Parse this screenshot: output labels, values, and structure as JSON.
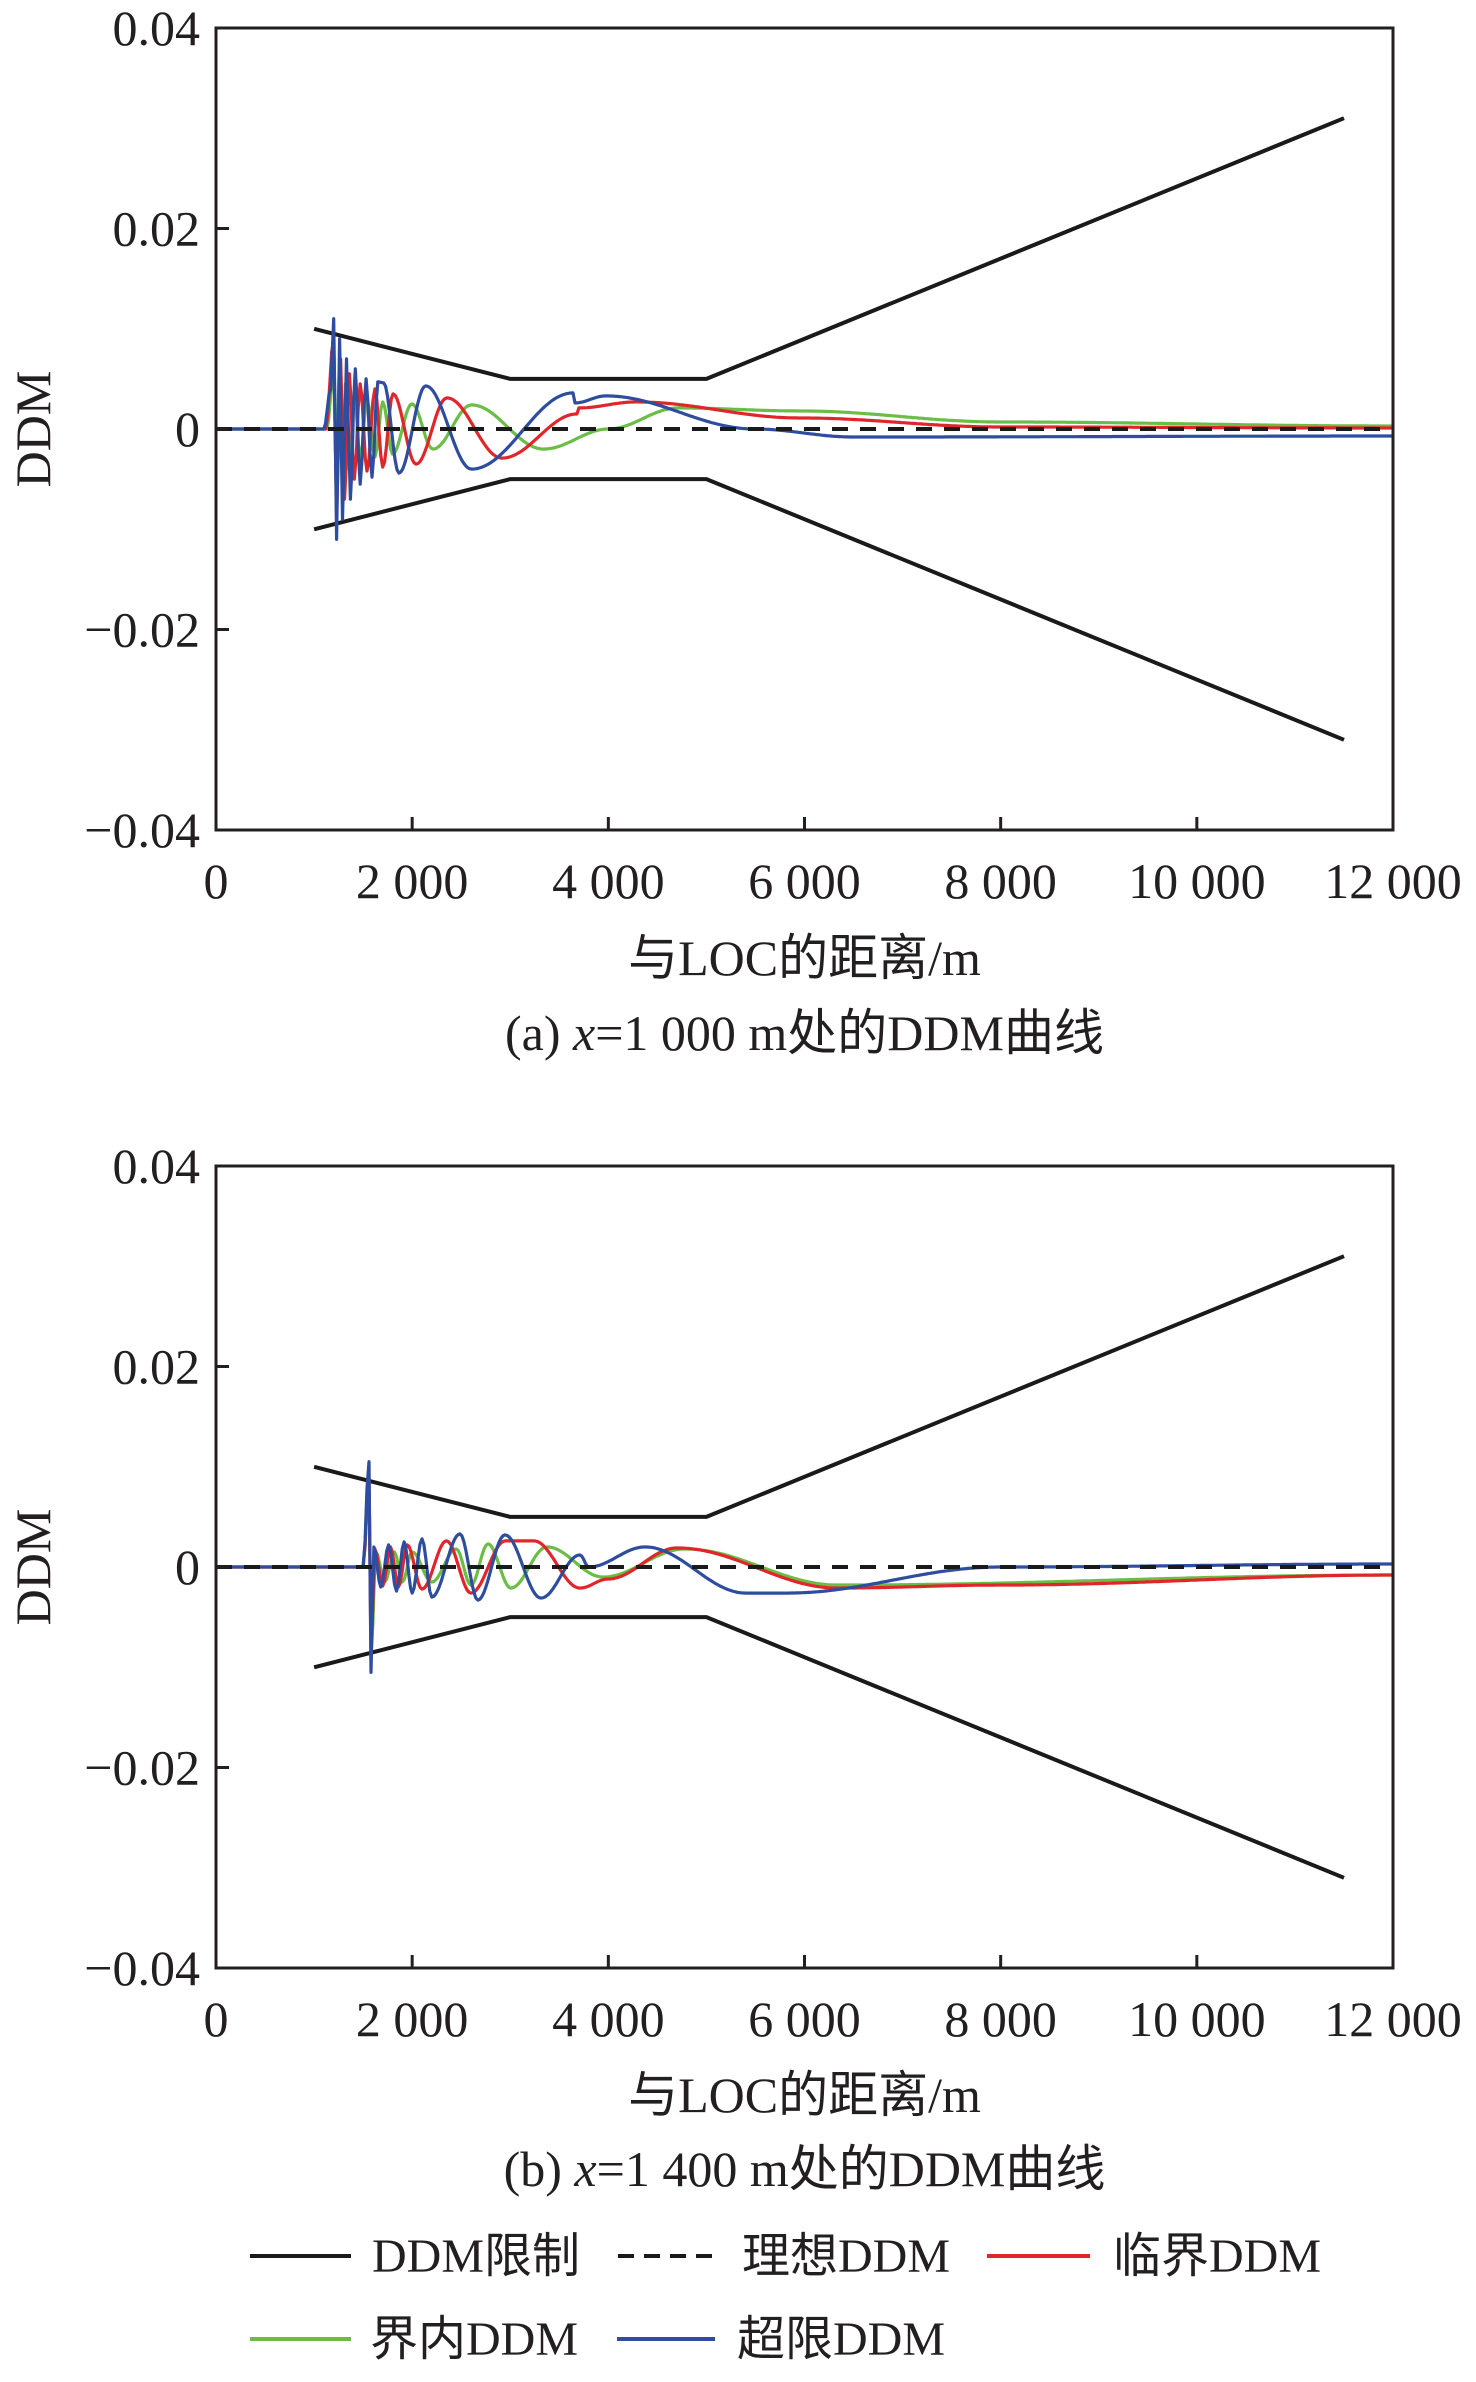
{
  "colors": {
    "limit": "#1a1a1a",
    "ideal": "#1a1a1a",
    "critical": "#e1262b",
    "inside": "#6abd45",
    "exceed": "#2e4d9f"
  },
  "legend": [
    {
      "key": "limit",
      "label": "DDM限制",
      "style": "solid"
    },
    {
      "key": "ideal",
      "label": "理想DDM",
      "style": "dashed"
    },
    {
      "key": "critical",
      "label": "临界DDM",
      "style": "solid"
    },
    {
      "key": "inside",
      "label": "界内DDM",
      "style": "solid"
    },
    {
      "key": "exceed",
      "label": "超限DDM",
      "style": "solid"
    }
  ],
  "chart_data": [
    {
      "type": "line",
      "caption": "(a) x=1 000 m处的DDM曲线",
      "caption_parts": [
        "(a) ",
        "x",
        "=1 000 m处的DDM曲线"
      ],
      "xlabel": "与LOC的距离/m",
      "ylabel": "DDM",
      "xlim": [
        0,
        12000
      ],
      "ylim": [
        -0.04,
        0.04
      ],
      "xticks": [
        0,
        2000,
        4000,
        6000,
        8000,
        10000,
        12000
      ],
      "xtick_labels": [
        "0",
        "2 000",
        "4 000",
        "6 000",
        "8 000",
        "10 000",
        "12 000"
      ],
      "yticks": [
        0.04,
        0.02,
        0,
        -0.02,
        -0.04
      ],
      "ytick_labels": [
        "0.04",
        "0.02",
        "0",
        "−0.02",
        "−0.04"
      ],
      "series": [
        {
          "key": "limit",
          "name": "DDM限制 upper",
          "points": [
            [
              1000,
              0.01
            ],
            [
              3000,
              0.005
            ],
            [
              5000,
              0.005
            ],
            [
              11500,
              0.031
            ]
          ]
        },
        {
          "key": "limit",
          "name": "DDM限制 lower",
          "points": [
            [
              1000,
              -0.01
            ],
            [
              3000,
              -0.005
            ],
            [
              5000,
              -0.005
            ],
            [
              11500,
              -0.031
            ]
          ]
        },
        {
          "key": "ideal",
          "name": "理想DDM",
          "points": [
            [
              0,
              0
            ],
            [
              12000,
              0
            ]
          ]
        },
        {
          "key": "exceed",
          "name": "超限DDM",
          "points": [
            [
              0,
              0
            ],
            [
              1100,
              0
            ],
            [
              1170,
              0.004
            ],
            [
              1200,
              0.011
            ],
            [
              1230,
              -0.011
            ],
            [
              1260,
              0.009
            ],
            [
              1290,
              -0.009
            ],
            [
              1330,
              0.007
            ],
            [
              1370,
              -0.007
            ],
            [
              1420,
              0.006
            ],
            [
              1470,
              -0.0055
            ],
            [
              1530,
              0.005
            ],
            [
              1590,
              -0.0048
            ],
            [
              1650,
              0.0047
            ],
            [
              1710,
              0.0046
            ],
            [
              1865,
              -0.0044
            ],
            [
              2138,
              0.0043
            ],
            [
              2606,
              -0.004
            ],
            [
              3640,
              0.0036
            ],
            [
              3660,
              0.0026
            ],
            [
              3973,
              0.0033
            ],
            [
              5494,
              0
            ],
            [
              6500,
              -0.0008
            ],
            [
              12000,
              -0.0007
            ]
          ]
        },
        {
          "key": "critical",
          "name": "临界DDM",
          "points": [
            [
              0,
              0
            ],
            [
              1120,
              0
            ],
            [
              1200,
              0.009
            ],
            [
              1230,
              -0.009
            ],
            [
              1270,
              0.007
            ],
            [
              1310,
              -0.007
            ],
            [
              1360,
              0.0055
            ],
            [
              1410,
              -0.005
            ],
            [
              1470,
              0.0045
            ],
            [
              1540,
              -0.0042
            ],
            [
              1620,
              0.004
            ],
            [
              1700,
              -0.0038
            ],
            [
              1805,
              0.0035
            ],
            [
              2040,
              -0.0035
            ],
            [
              2355,
              0.0031
            ],
            [
              2915,
              -0.0029
            ],
            [
              3680,
              0.0015
            ],
            [
              3700,
              0.0021
            ],
            [
              4280,
              0.0027
            ],
            [
              5953,
              0.0011
            ],
            [
              8000,
              0.0002
            ],
            [
              12000,
              0.0001
            ]
          ]
        },
        {
          "key": "inside",
          "name": "界内DDM",
          "points": [
            [
              0,
              0
            ],
            [
              1130,
              0
            ],
            [
              1200,
              0.006
            ],
            [
              1225,
              -0.006
            ],
            [
              1255,
              0.0055
            ],
            [
              1285,
              -0.005
            ],
            [
              1320,
              0.0045
            ],
            [
              1360,
              -0.004
            ],
            [
              1410,
              0.0035
            ],
            [
              1470,
              -0.003
            ],
            [
              1540,
              0.003
            ],
            [
              1620,
              -0.0028
            ],
            [
              1700,
              0.0027
            ],
            [
              1800,
              -0.0025
            ],
            [
              1998,
              0.0025
            ],
            [
              2212,
              -0.002
            ],
            [
              2606,
              0.0024
            ],
            [
              3340,
              -0.002
            ],
            [
              4000,
              0
            ],
            [
              4710,
              0.0021
            ],
            [
              5953,
              0.0018
            ],
            [
              8000,
              0.0007
            ],
            [
              12000,
              0.0003
            ]
          ]
        }
      ]
    },
    {
      "type": "line",
      "caption": "(b) x=1 400 m处的DDM曲线",
      "caption_parts": [
        "(b) ",
        "x",
        "=1 400 m处的DDM曲线"
      ],
      "xlabel": "与LOC的距离/m",
      "ylabel": "DDM",
      "xlim": [
        0,
        12000
      ],
      "ylim": [
        -0.04,
        0.04
      ],
      "xticks": [
        0,
        2000,
        4000,
        6000,
        8000,
        10000,
        12000
      ],
      "xtick_labels": [
        "0",
        "2 000",
        "4 000",
        "6 000",
        "8 000",
        "10 000",
        "12 000"
      ],
      "yticks": [
        0.04,
        0.02,
        0,
        -0.02,
        -0.04
      ],
      "ytick_labels": [
        "0.04",
        "0.02",
        "0",
        "−0.02",
        "−0.04"
      ],
      "series": [
        {
          "key": "limit",
          "name": "DDM限制 upper",
          "points": [
            [
              1000,
              0.01
            ],
            [
              3000,
              0.005
            ],
            [
              5000,
              0.005
            ],
            [
              11500,
              0.031
            ]
          ]
        },
        {
          "key": "limit",
          "name": "DDM限制 lower",
          "points": [
            [
              1000,
              -0.01
            ],
            [
              3000,
              -0.005
            ],
            [
              5000,
              -0.005
            ],
            [
              11500,
              -0.031
            ]
          ]
        },
        {
          "key": "ideal",
          "name": "理想DDM",
          "points": [
            [
              0,
              0
            ],
            [
              12000,
              0
            ]
          ]
        },
        {
          "key": "exceed",
          "name": "超限DDM",
          "points": [
            [
              0,
              0
            ],
            [
              1500,
              0
            ],
            [
              1560,
              0.0105
            ],
            [
              1580,
              -0.0105
            ],
            [
              1610,
              0.002
            ],
            [
              1680,
              -0.002
            ],
            [
              1760,
              0.0022
            ],
            [
              1840,
              -0.0024
            ],
            [
              1918,
              0.0025
            ],
            [
              2000,
              -0.0026
            ],
            [
              2100,
              0.0028
            ],
            [
              2200,
              -0.003
            ],
            [
              2487,
              0.0033
            ],
            [
              2670,
              -0.0033
            ],
            [
              2946,
              0.0032
            ],
            [
              3313,
              -0.0031
            ],
            [
              3711,
              0.0012
            ],
            [
              3800,
              0
            ],
            [
              4373,
              0.002
            ],
            [
              5403,
              -0.0026
            ],
            [
              5820,
              -0.0026
            ],
            [
              7992,
              0
            ],
            [
              12000,
              0.0003
            ]
          ]
        },
        {
          "key": "critical",
          "name": "临界DDM",
          "points": [
            [
              0,
              0
            ],
            [
              1500,
              0
            ],
            [
              1560,
              0.009
            ],
            [
              1580,
              -0.009
            ],
            [
              1620,
              0.0018
            ],
            [
              1700,
              -0.0019
            ],
            [
              1780,
              0.002
            ],
            [
              1860,
              -0.002
            ],
            [
              1950,
              0.0022
            ],
            [
              2100,
              -0.0022
            ],
            [
              2350,
              0.0026
            ],
            [
              2600,
              -0.0026
            ],
            [
              2950,
              0.0026
            ],
            [
              3242,
              0.0026
            ],
            [
              3711,
              -0.0021
            ],
            [
              3996,
              -0.0012
            ],
            [
              4700,
              0.0019
            ],
            [
              6340,
              -0.0021
            ],
            [
              7992,
              -0.0018
            ],
            [
              12000,
              -0.0008
            ]
          ]
        },
        {
          "key": "inside",
          "name": "界内DDM",
          "points": [
            [
              0,
              0
            ],
            [
              1500,
              0
            ],
            [
              1560,
              0.008
            ],
            [
              1585,
              -0.008
            ],
            [
              1630,
              0.0015
            ],
            [
              1720,
              -0.0015
            ],
            [
              1820,
              0.0015
            ],
            [
              1900,
              -0.0015
            ],
            [
              2000,
              0.0015
            ],
            [
              2200,
              -0.0015
            ],
            [
              2450,
              0.0018
            ],
            [
              2600,
              -0.0018
            ],
            [
              2773,
              0.0023
            ],
            [
              3007,
              -0.0021
            ],
            [
              3374,
              0.002
            ],
            [
              3945,
              -0.001
            ],
            [
              4780,
              0.0018
            ],
            [
              6340,
              -0.0018
            ],
            [
              12000,
              -0.0008
            ]
          ]
        }
      ]
    }
  ]
}
